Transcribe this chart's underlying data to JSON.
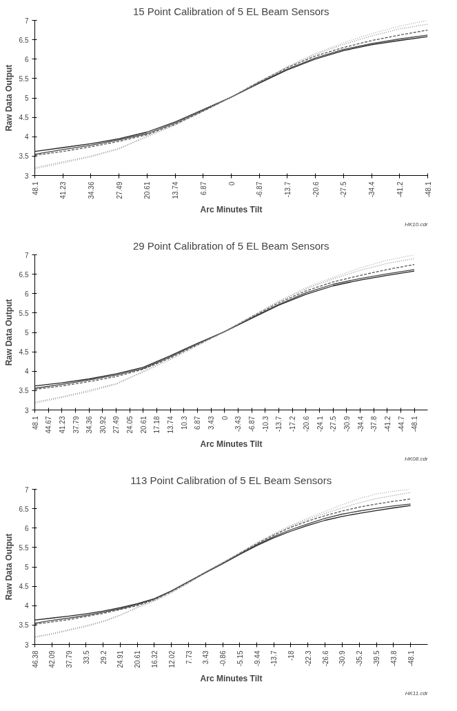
{
  "chart_data": [
    {
      "type": "line",
      "title": "15 Point Calibration of 5 EL Beam Sensors",
      "xlabel": "Arc Minutes Tilt",
      "ylabel": "Raw Data Output",
      "annotations": [
        "HK10.cdr"
      ],
      "x": [
        48.1,
        41.23,
        34.36,
        27.49,
        20.61,
        13.74,
        6.87,
        0,
        -6.87,
        -13.7,
        -20.6,
        -27.5,
        -34.4,
        -41.2,
        -48.1
      ],
      "xlim": [
        48.1,
        -48.1
      ],
      "xticks": [
        48.1,
        41.23,
        34.36,
        27.49,
        20.61,
        13.74,
        6.87,
        0,
        -6.87,
        -13.7,
        -20.6,
        -27.5,
        -34.4,
        -41.2,
        -48.1
      ],
      "ylim": [
        3,
        7
      ],
      "yticks": [
        3,
        3.5,
        4,
        4.5,
        5,
        5.5,
        6,
        6.5,
        7
      ],
      "grid": false,
      "series": [
        {
          "color": "#222222",
          "line_style": "solid",
          "values": [
            3.62,
            3.72,
            3.82,
            3.95,
            4.12,
            4.38,
            4.7,
            5.02,
            5.38,
            5.72,
            6.0,
            6.22,
            6.37,
            6.48,
            6.58
          ]
        },
        {
          "color": "#444444",
          "line_style": "solid",
          "values": [
            3.55,
            3.67,
            3.78,
            3.92,
            4.08,
            4.35,
            4.68,
            5.02,
            5.4,
            5.74,
            6.03,
            6.25,
            6.4,
            6.52,
            6.62
          ]
        },
        {
          "color": "#555555",
          "line_style": "dashed",
          "values": [
            3.52,
            3.62,
            3.74,
            3.88,
            4.05,
            4.32,
            4.66,
            5.02,
            5.42,
            5.78,
            6.08,
            6.3,
            6.48,
            6.62,
            6.75
          ]
        },
        {
          "color": "#888888",
          "line_style": "dotted",
          "values": [
            3.2,
            3.35,
            3.5,
            3.7,
            4.0,
            4.3,
            4.65,
            5.02,
            5.42,
            5.8,
            6.12,
            6.38,
            6.6,
            6.78,
            6.9
          ]
        },
        {
          "color": "#aaaaaa",
          "line_style": "dotted",
          "values": [
            3.17,
            3.32,
            3.48,
            3.68,
            4.02,
            4.35,
            4.7,
            5.02,
            5.4,
            5.8,
            6.15,
            6.42,
            6.66,
            6.85,
            7.0
          ]
        }
      ]
    },
    {
      "type": "line",
      "title": "29 Point Calibration of 5 EL Beam Sensors",
      "xlabel": "Arc Minutes Tilt",
      "ylabel": "Raw Data Output",
      "annotations": [
        "HK08.cdr"
      ],
      "x": [
        48.1,
        41.23,
        34.36,
        27.49,
        20.61,
        13.74,
        6.87,
        0,
        -6.87,
        -13.7,
        -20.6,
        -27.5,
        -34.4,
        -41.2,
        -48.1
      ],
      "xlim": [
        48.1,
        -51.5
      ],
      "xticks": [
        48.1,
        44.67,
        41.23,
        37.79,
        34.36,
        30.92,
        27.49,
        24.05,
        20.61,
        17.18,
        13.74,
        10.3,
        6.87,
        3.43,
        0,
        -3.43,
        -6.87,
        -10.3,
        -13.7,
        -17.2,
        -20.6,
        -24.1,
        -27.5,
        -30.9,
        -34.4,
        -37.8,
        -41.2,
        -44.7,
        -48.1
      ],
      "ylim": [
        3,
        7
      ],
      "yticks": [
        3,
        3.5,
        4,
        4.5,
        5,
        5.5,
        6,
        6.5,
        7
      ],
      "grid": false,
      "series": [
        {
          "color": "#222222",
          "line_style": "solid",
          "values": [
            3.62,
            3.7,
            3.8,
            3.93,
            4.1,
            4.4,
            4.72,
            5.02,
            5.36,
            5.7,
            5.98,
            6.2,
            6.35,
            6.47,
            6.58
          ]
        },
        {
          "color": "#444444",
          "line_style": "solid",
          "values": [
            3.56,
            3.66,
            3.77,
            3.9,
            4.07,
            4.37,
            4.7,
            5.02,
            5.38,
            5.72,
            6.02,
            6.24,
            6.39,
            6.51,
            6.62
          ]
        },
        {
          "color": "#555555",
          "line_style": "dashed",
          "values": [
            3.53,
            3.62,
            3.73,
            3.86,
            4.05,
            4.34,
            4.68,
            5.02,
            5.4,
            5.76,
            6.07,
            6.3,
            6.47,
            6.62,
            6.75
          ]
        },
        {
          "color": "#888888",
          "line_style": "dotted",
          "values": [
            3.2,
            3.34,
            3.5,
            3.68,
            3.98,
            4.3,
            4.66,
            5.02,
            5.42,
            5.8,
            6.12,
            6.38,
            6.6,
            6.78,
            6.9
          ]
        },
        {
          "color": "#aaaaaa",
          "line_style": "dotted",
          "values": [
            3.17,
            3.32,
            3.47,
            3.66,
            4.0,
            4.34,
            4.7,
            5.02,
            5.4,
            5.8,
            6.15,
            6.42,
            6.66,
            6.86,
            7.0
          ]
        }
      ]
    },
    {
      "type": "line",
      "title": "113 Point Calibration of 5 EL Beam Sensors",
      "xlabel": "Arc Minutes Tilt",
      "ylabel": "Raw Data Output",
      "annotations": [
        "HK11.cdr"
      ],
      "x": [
        46.38,
        42.09,
        37.79,
        33.5,
        29.2,
        24.91,
        20.61,
        16.32,
        12.02,
        7.73,
        3.43,
        -0.86,
        -5.15,
        -9.44,
        -13.7,
        -18,
        -22.3,
        -26.6,
        -30.9,
        -35.2,
        -39.5,
        -43.8,
        -48.1
      ],
      "xlim": [
        46.38,
        -52.4
      ],
      "xticks": [
        46.38,
        42.09,
        37.79,
        33.5,
        29.2,
        24.91,
        20.61,
        16.32,
        12.02,
        7.73,
        3.43,
        -0.86,
        -5.15,
        -9.44,
        -13.7,
        -18,
        -22.3,
        -26.6,
        -30.9,
        -35.2,
        -39.5,
        -43.8,
        -48.1
      ],
      "ylim": [
        3,
        7
      ],
      "yticks": [
        3,
        3.5,
        4,
        4.5,
        5,
        5.5,
        6,
        6.5,
        7
      ],
      "grid": false,
      "series": [
        {
          "color": "#222222",
          "line_style": "solid",
          "values": [
            3.63,
            3.68,
            3.73,
            3.79,
            3.86,
            3.95,
            4.05,
            4.18,
            4.38,
            4.62,
            4.85,
            5.08,
            5.32,
            5.55,
            5.75,
            5.92,
            6.07,
            6.2,
            6.3,
            6.38,
            6.45,
            6.52,
            6.58
          ]
        },
        {
          "color": "#444444",
          "line_style": "solid",
          "values": [
            3.55,
            3.62,
            3.68,
            3.75,
            3.83,
            3.92,
            4.03,
            4.17,
            4.38,
            4.62,
            4.86,
            5.09,
            5.33,
            5.57,
            5.78,
            5.96,
            6.11,
            6.25,
            6.36,
            6.44,
            6.51,
            6.57,
            6.62
          ]
        },
        {
          "color": "#555555",
          "line_style": "dashed",
          "values": [
            3.52,
            3.58,
            3.64,
            3.72,
            3.8,
            3.9,
            4.0,
            4.15,
            4.36,
            4.6,
            4.86,
            5.1,
            5.35,
            5.6,
            5.82,
            6.02,
            6.18,
            6.32,
            6.44,
            6.54,
            6.62,
            6.69,
            6.75
          ]
        },
        {
          "color": "#888888",
          "line_style": "dotted",
          "values": [
            3.2,
            3.28,
            3.38,
            3.48,
            3.6,
            3.76,
            3.95,
            4.12,
            4.33,
            4.58,
            4.85,
            5.1,
            5.36,
            5.62,
            5.85,
            6.05,
            6.22,
            6.38,
            6.52,
            6.65,
            6.76,
            6.84,
            6.92
          ]
        },
        {
          "color": "#aaaaaa",
          "line_style": "dotted",
          "values": [
            3.18,
            3.26,
            3.36,
            3.46,
            3.58,
            3.75,
            3.96,
            4.14,
            4.36,
            4.62,
            4.88,
            5.12,
            5.37,
            5.62,
            5.85,
            6.07,
            6.26,
            6.43,
            6.6,
            6.76,
            6.88,
            6.95,
            7.0
          ]
        }
      ]
    }
  ]
}
